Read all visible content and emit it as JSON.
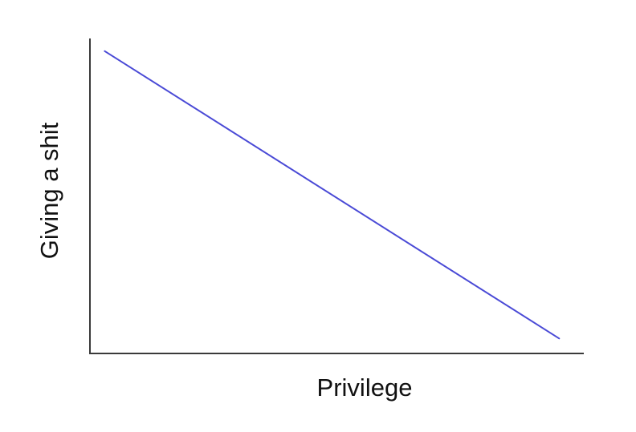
{
  "chart_data": {
    "type": "line",
    "title": "",
    "xlabel": "Privilege",
    "ylabel": "Giving a shit",
    "x_ticks": [],
    "y_ticks": [],
    "grid": false,
    "legend": "none",
    "xlim": [
      0,
      1
    ],
    "ylim": [
      0,
      1
    ],
    "series": [
      {
        "color": "#4a4ad6",
        "x": [
          0.03,
          0.95
        ],
        "y": [
          0.96,
          0.05
        ]
      }
    ]
  },
  "colors": {
    "axis": "#3a3a3a",
    "text": "#111111",
    "background": "#ffffff"
  }
}
